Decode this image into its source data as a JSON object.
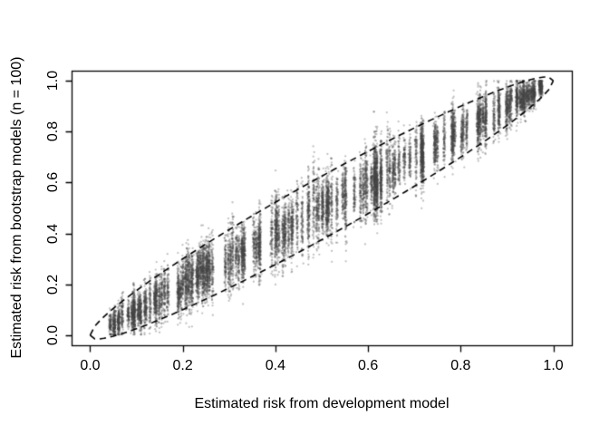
{
  "chart_data": {
    "type": "scatter",
    "title": "",
    "xlabel": "Estimated risk from development model",
    "ylabel": "Estimated risk from bootstrap models (n = 100)",
    "xlim": [
      0,
      1
    ],
    "ylim": [
      0,
      1
    ],
    "axis_padding_fraction": 0.04,
    "xticks": [
      {
        "value": 0.0,
        "label": "0.0"
      },
      {
        "value": 0.2,
        "label": "0.2"
      },
      {
        "value": 0.4,
        "label": "0.4"
      },
      {
        "value": 0.6,
        "label": "0.6"
      },
      {
        "value": 0.8,
        "label": "0.8"
      },
      {
        "value": 1.0,
        "label": "1.0"
      }
    ],
    "yticks": [
      {
        "value": 0.0,
        "label": "0.0"
      },
      {
        "value": 0.2,
        "label": "0.2"
      },
      {
        "value": 0.4,
        "label": "0.4"
      },
      {
        "value": 0.6,
        "label": "0.6"
      },
      {
        "value": 0.8,
        "label": "0.8"
      },
      {
        "value": 1.0,
        "label": "1.0"
      }
    ],
    "grid": false,
    "legend": null,
    "background_color": "#ffffff",
    "axis_color": "#000000",
    "point_color_rgb": [
      70,
      70,
      70
    ],
    "point_alpha": 0.33,
    "point_radius_px": 1.15,
    "cloud": {
      "description": "Bootstrap risk estimates: vertical strips of points, one strip per development-model predicted risk, spread widest at mid-range probabilities and converging at (0,0) and (1,1)",
      "n_x_strips": 160,
      "points_per_strip": 100,
      "x_min": 0.01,
      "x_max": 0.99,
      "sigma_scale": 0.128,
      "strip_sigma_jitter": [
        0.7,
        1.3
      ],
      "strip_x_jitter_sd": 0.0012,
      "seed": 913
    },
    "envelope": {
      "style": "dashed",
      "color": "#000000",
      "line_width": 1.6,
      "dash_pattern": [
        7,
        5
      ],
      "halfwidth_scale": 0.25,
      "formula": "y = x ± 0.25·√(x(1−x))",
      "upper_points": [
        [
          0.0,
          0.0
        ],
        [
          0.2,
          0.3
        ],
        [
          0.4,
          0.52
        ],
        [
          0.6,
          0.72
        ],
        [
          0.8,
          0.9
        ],
        [
          1.0,
          1.0
        ]
      ],
      "lower_points": [
        [
          0.0,
          0.0
        ],
        [
          0.2,
          0.1
        ],
        [
          0.4,
          0.28
        ],
        [
          0.6,
          0.48
        ],
        [
          0.8,
          0.7
        ],
        [
          1.0,
          1.0
        ]
      ]
    }
  }
}
